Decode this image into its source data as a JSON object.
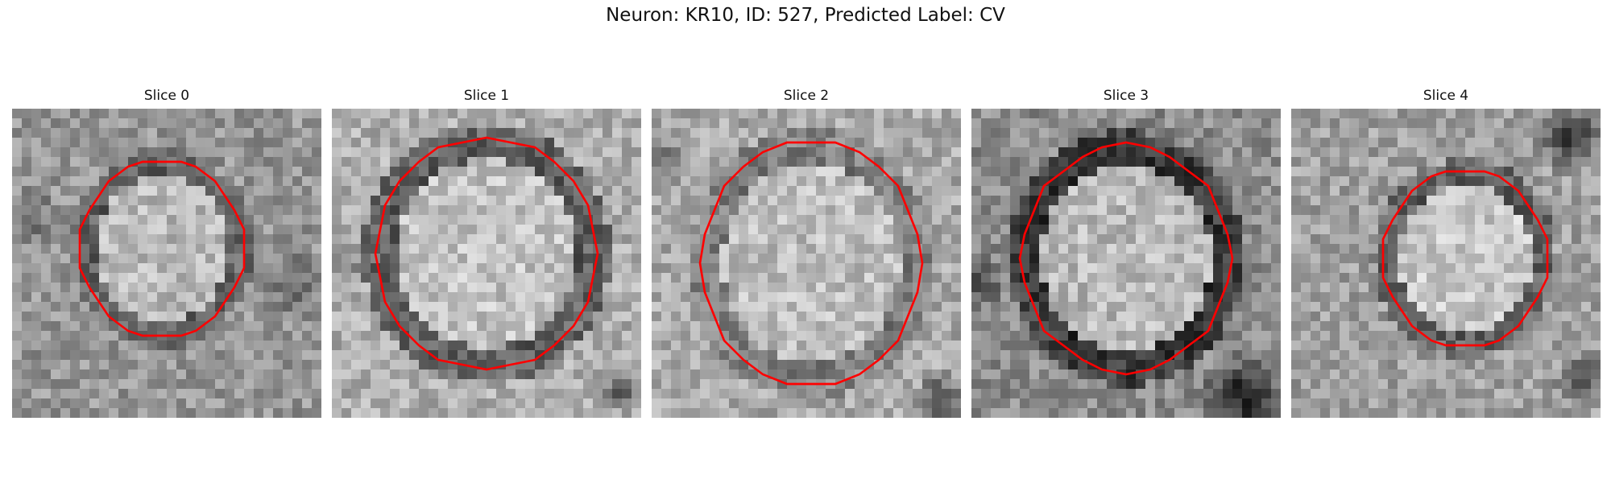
{
  "figure": {
    "title": "Neuron: KR10, ID: 527, Predicted Label: CV"
  },
  "panels": [
    {
      "title": "Slice 0"
    },
    {
      "title": "Slice 1"
    },
    {
      "title": "Slice 2"
    },
    {
      "title": "Slice 3"
    },
    {
      "title": "Slice 4"
    }
  ],
  "colors": {
    "contour": "#ff0000",
    "background": "#ffffff"
  }
}
